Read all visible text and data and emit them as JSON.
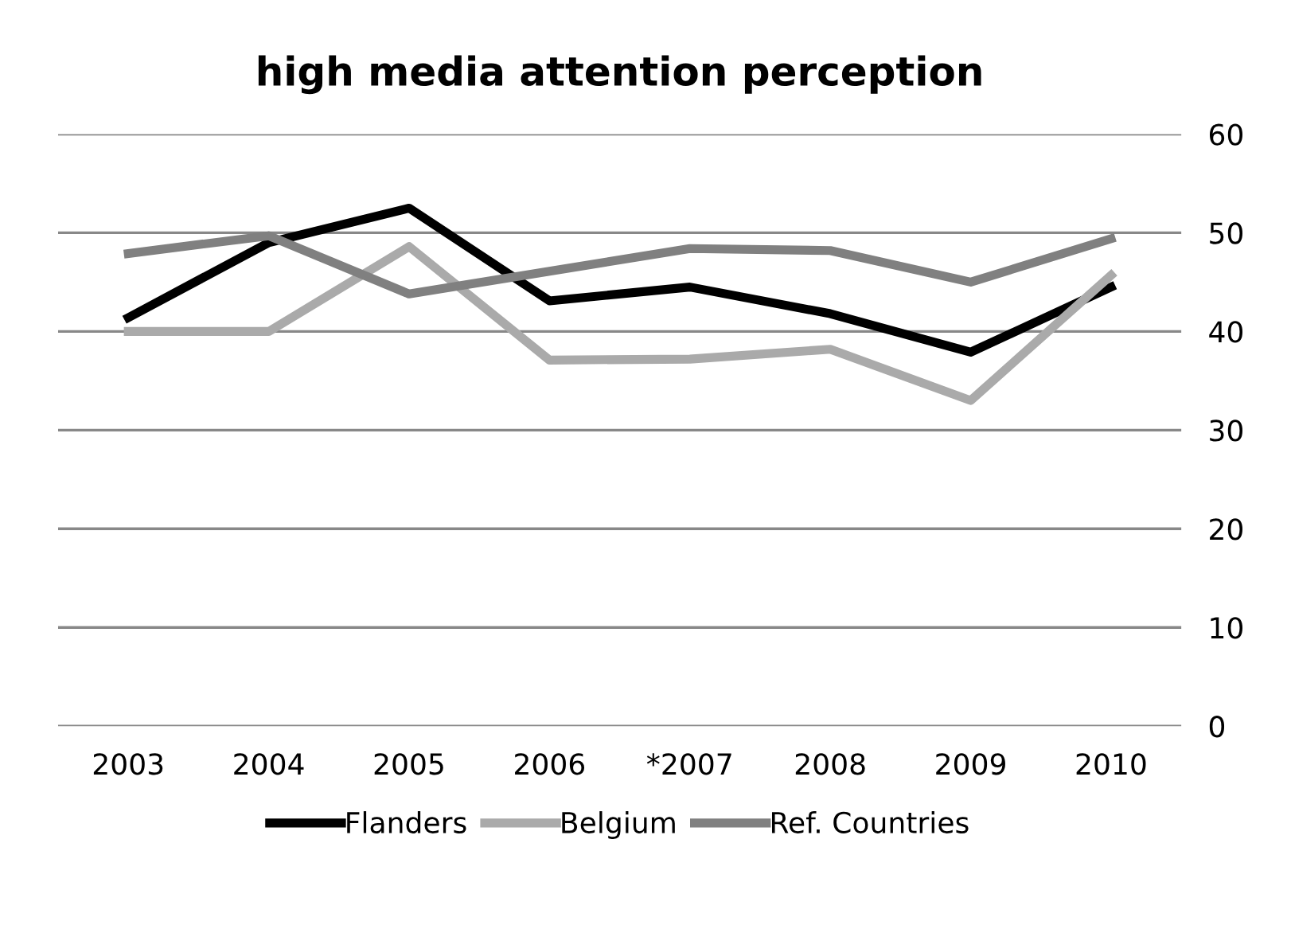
{
  "chart_data": {
    "type": "line",
    "title": "high media attention perception",
    "categories": [
      "2003",
      "2004",
      "2005",
      "2006",
      "*2007",
      "2008",
      "2009",
      "2010"
    ],
    "series": [
      {
        "name": "Flanders",
        "color": "#000000",
        "values": [
          41.4,
          49.0,
          52.5,
          43.1,
          44.5,
          41.8,
          37.9,
          44.5
        ]
      },
      {
        "name": "Belgium",
        "color": "#aaaaaa",
        "values": [
          40.0,
          40.0,
          48.6,
          37.1,
          37.2,
          38.2,
          33.0,
          45.7
        ]
      },
      {
        "name": "Ref. Countries",
        "color": "#808080",
        "values": [
          47.9,
          49.7,
          43.8,
          46.1,
          48.4,
          48.2,
          45.0,
          49.4
        ]
      }
    ],
    "ylim": [
      0,
      60
    ],
    "yticks": [
      0,
      10,
      20,
      30,
      40,
      50,
      60
    ],
    "grid": "y",
    "legend": "bottom",
    "marker": "none",
    "line_style": "solid"
  }
}
